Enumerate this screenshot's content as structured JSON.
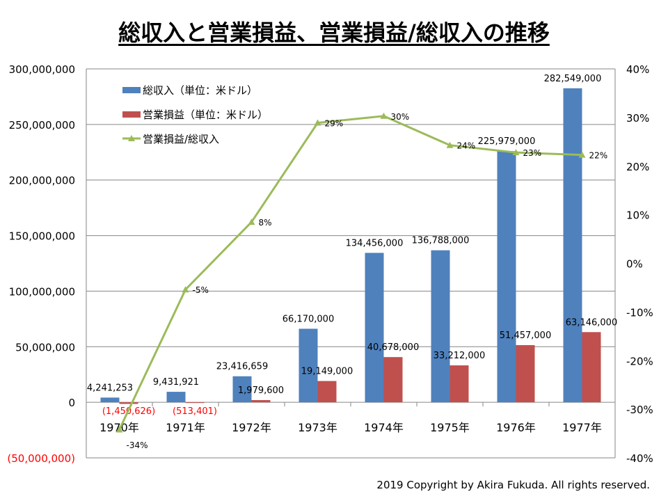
{
  "chart_data": {
    "type": "bar",
    "title": "総収入と営業損益、営業損益/総収入の推移",
    "categories": [
      "1970年",
      "1971年",
      "1972年",
      "1973年",
      "1974年",
      "1975年",
      "1976年",
      "1977年"
    ],
    "series": [
      {
        "name": "総収入（単位：米ドル）",
        "type": "bar",
        "axis": "left",
        "color": "#4F81BD",
        "values": [
          4241253,
          9431921,
          23416659,
          66170000,
          134456000,
          136788000,
          225979000,
          282549000
        ],
        "labels": [
          "4,241,253",
          "9,431,921",
          "23,416,659",
          "66,170,000",
          "134,456,000",
          "136,788,000",
          "225,979,000",
          "282,549,000"
        ]
      },
      {
        "name": "営業損益（単位：米ドル）",
        "type": "bar",
        "axis": "left",
        "color": "#C0504D",
        "values": [
          -1450626,
          -513401,
          1979600,
          19149000,
          40678000,
          33212000,
          51457000,
          63146000
        ],
        "labels": [
          "(1,450,626)",
          "(513,401)",
          "1,979,600",
          "19,149,000",
          "40,678,000",
          "33,212,000",
          "51,457,000",
          "63,146,000"
        ]
      },
      {
        "name": "営業損益/総収入",
        "type": "line",
        "axis": "right",
        "color": "#9BBB59",
        "values": [
          -34.2,
          -5.4,
          8.5,
          28.9,
          30.3,
          24.3,
          22.8,
          22.3
        ],
        "labels": [
          "-34%",
          "-5%",
          "8%",
          "29%",
          "30%",
          "24%",
          "23%",
          "22%"
        ]
      }
    ],
    "left_axis": {
      "range": [
        -50000000,
        300000000
      ],
      "ticks": [
        "(50,000,000)",
        "0",
        "50,000,000",
        "100,000,000",
        "150,000,000",
        "200,000,000",
        "250,000,000",
        "300,000,000"
      ]
    },
    "right_axis": {
      "range": [
        -40,
        40
      ],
      "ticks": [
        "-40%",
        "-30%",
        "-20%",
        "-10%",
        "0%",
        "10%",
        "20%",
        "30%",
        "40%"
      ]
    },
    "grid": true,
    "legend": "top-left"
  },
  "copyright": "2019 Copyright by Akira Fukuda. All rights reserved."
}
